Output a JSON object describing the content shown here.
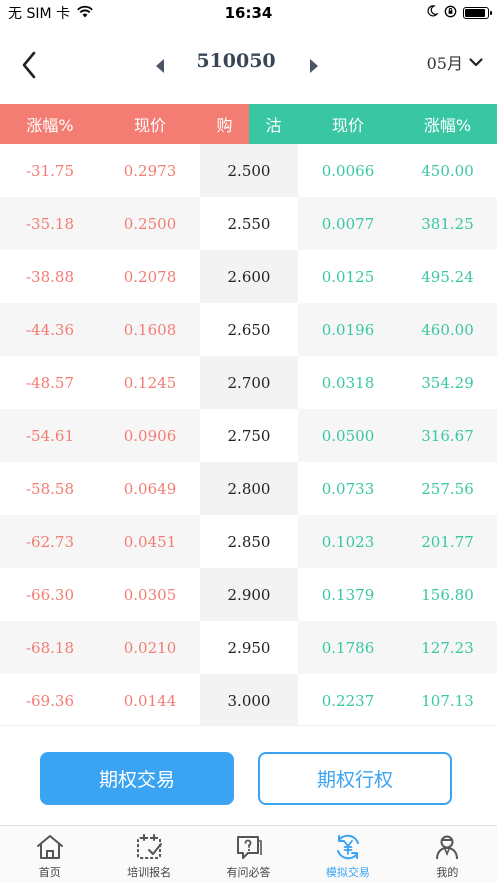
{
  "status_bar": {
    "carrier": "无 SIM 卡",
    "time": "16:34"
  },
  "nav": {
    "title": "510050",
    "month": "05月"
  },
  "table": {
    "headers": {
      "call_change": "涨幅%",
      "call_price": "现价",
      "buy": "购",
      "sell": "沽",
      "put_price": "现价",
      "put_change": "涨幅%"
    },
    "rows": [
      {
        "call_change": "-31.75",
        "call_price": "0.2973",
        "strike": "2.500",
        "put_price": "0.0066",
        "put_change": "450.00"
      },
      {
        "call_change": "-35.18",
        "call_price": "0.2500",
        "strike": "2.550",
        "put_price": "0.0077",
        "put_change": "381.25"
      },
      {
        "call_change": "-38.88",
        "call_price": "0.2078",
        "strike": "2.600",
        "put_price": "0.0125",
        "put_change": "495.24"
      },
      {
        "call_change": "-44.36",
        "call_price": "0.1608",
        "strike": "2.650",
        "put_price": "0.0196",
        "put_change": "460.00"
      },
      {
        "call_change": "-48.57",
        "call_price": "0.1245",
        "strike": "2.700",
        "put_price": "0.0318",
        "put_change": "354.29"
      },
      {
        "call_change": "-54.61",
        "call_price": "0.0906",
        "strike": "2.750",
        "put_price": "0.0500",
        "put_change": "316.67"
      },
      {
        "call_change": "-58.58",
        "call_price": "0.0649",
        "strike": "2.800",
        "put_price": "0.0733",
        "put_change": "257.56"
      },
      {
        "call_change": "-62.73",
        "call_price": "0.0451",
        "strike": "2.850",
        "put_price": "0.1023",
        "put_change": "201.77"
      },
      {
        "call_change": "-66.30",
        "call_price": "0.0305",
        "strike": "2.900",
        "put_price": "0.1379",
        "put_change": "156.80"
      },
      {
        "call_change": "-68.18",
        "call_price": "0.0210",
        "strike": "2.950",
        "put_price": "0.1786",
        "put_change": "127.23"
      },
      {
        "call_change": "-69.36",
        "call_price": "0.0144",
        "strike": "3.000",
        "put_price": "0.2237",
        "put_change": "107.13"
      }
    ]
  },
  "actions": {
    "trade_label": "期权交易",
    "exercise_label": "期权行权"
  },
  "tabs": [
    {
      "label": "首页",
      "icon": "home-icon"
    },
    {
      "label": "培训报名",
      "icon": "calendar-check-icon"
    },
    {
      "label": "有问必答",
      "icon": "question-chat-icon"
    },
    {
      "label": "模拟交易",
      "icon": "yuan-exchange-icon"
    },
    {
      "label": "我的",
      "icon": "user-icon"
    }
  ],
  "active_tab": "模拟交易",
  "colors": {
    "red": "#f37c73",
    "green": "#39c7a3",
    "blue": "#3aa4f3"
  }
}
